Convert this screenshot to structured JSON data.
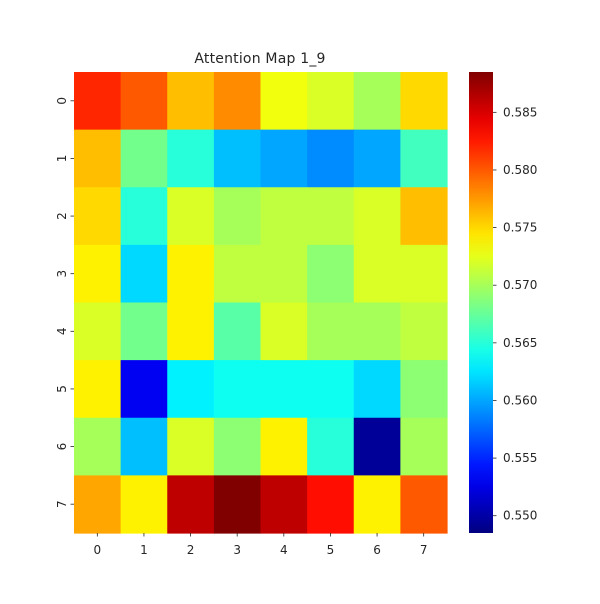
{
  "chart_data": {
    "type": "heatmap",
    "title": "Attention Map 1_9",
    "x_tick_labels": [
      "0",
      "1",
      "2",
      "3",
      "4",
      "5",
      "6",
      "7"
    ],
    "y_tick_labels": [
      "0",
      "1",
      "2",
      "3",
      "4",
      "5",
      "6",
      "7"
    ],
    "values": [
      [
        0.582,
        0.58,
        0.576,
        0.578,
        0.573,
        0.572,
        0.57,
        0.575
      ],
      [
        0.576,
        0.568,
        0.565,
        0.561,
        0.56,
        0.559,
        0.56,
        0.566
      ],
      [
        0.575,
        0.565,
        0.572,
        0.57,
        0.571,
        0.571,
        0.572,
        0.576
      ],
      [
        0.574,
        0.562,
        0.574,
        0.571,
        0.571,
        0.569,
        0.572,
        0.572
      ],
      [
        0.572,
        0.568,
        0.574,
        0.567,
        0.572,
        0.57,
        0.57,
        0.571
      ],
      [
        0.574,
        0.553,
        0.563,
        0.564,
        0.564,
        0.564,
        0.562,
        0.569
      ],
      [
        0.57,
        0.561,
        0.572,
        0.569,
        0.574,
        0.565,
        0.5495,
        0.57
      ],
      [
        0.577,
        0.574,
        0.586,
        0.5885,
        0.586,
        0.583,
        0.574,
        0.58
      ]
    ],
    "value_range": [
      0.5485,
      0.5885
    ],
    "colormap": "jet",
    "colorbar": {
      "ticks": [
        0.55,
        0.555,
        0.56,
        0.565,
        0.57,
        0.575,
        0.58,
        0.585
      ],
      "tick_labels": [
        "0.550",
        "0.555",
        "0.560",
        "0.565",
        "0.570",
        "0.575",
        "0.580",
        "0.585"
      ],
      "position": "right"
    },
    "grid": false
  }
}
